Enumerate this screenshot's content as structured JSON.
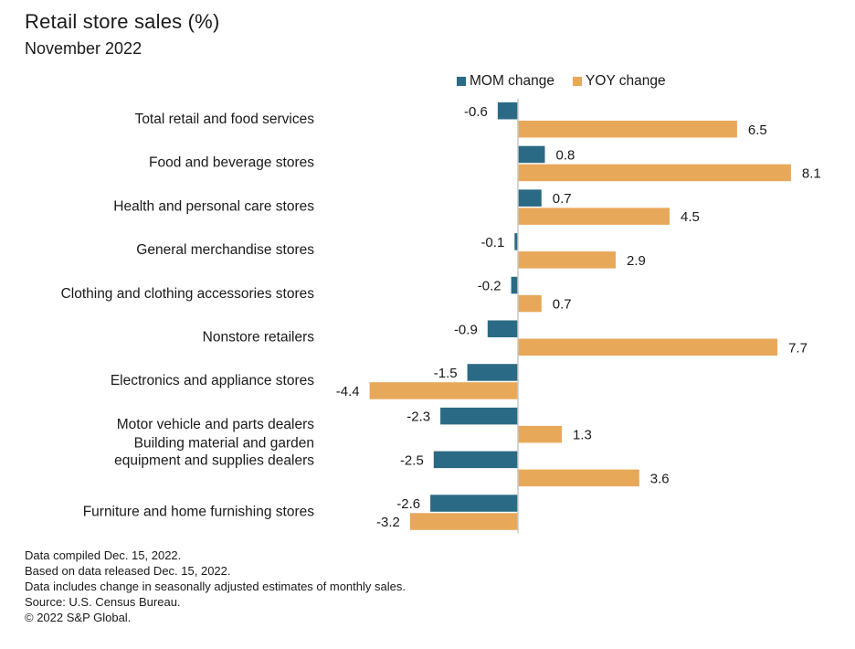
{
  "header": {
    "title": "Retail store sales (%)",
    "subtitle": "November 2022"
  },
  "colors": {
    "mom": "#2b6a84",
    "yoy": "#e8a85a",
    "axis": "#c8c8c8",
    "text": "#1a1a1a"
  },
  "legend": {
    "items": [
      {
        "label": "MOM change",
        "color": "#2b6a84"
      },
      {
        "label": "YOY change",
        "color": "#e8a85a"
      }
    ]
  },
  "chart_data": {
    "type": "bar",
    "orientation": "horizontal",
    "title": "Retail store sales (%)",
    "subtitle": "November 2022",
    "xlabel": "",
    "ylabel": "",
    "grid": false,
    "legend_position": "top",
    "xlim": [
      -4.4,
      8.1
    ],
    "categories": [
      "Total retail and food services",
      "Food and beverage stores",
      "Health and personal care stores",
      "General merchandise stores",
      "Clothing and clothing accessories stores",
      "Nonstore retailers",
      "Electronics and appliance stores",
      "Motor vehicle and parts dealers",
      "Building material and garden equipment and supplies dealers",
      "Furniture and home furnishing stores"
    ],
    "category_lines": [
      [
        "Total retail and food services"
      ],
      [
        "Food and beverage stores"
      ],
      [
        "Health and personal care stores"
      ],
      [
        "General merchandise stores"
      ],
      [
        "Clothing and clothing accessories stores"
      ],
      [
        "Nonstore retailers"
      ],
      [
        "Electronics and appliance stores"
      ],
      [
        "Motor vehicle and parts dealers"
      ],
      [
        "Building material and garden",
        "equipment and supplies dealers"
      ],
      [
        "Furniture and home furnishing stores"
      ]
    ],
    "series": [
      {
        "name": "MOM change",
        "values": [
          -0.6,
          0.8,
          0.7,
          -0.1,
          -0.2,
          -0.9,
          -1.5,
          -2.3,
          -2.5,
          -2.6
        ]
      },
      {
        "name": "YOY change",
        "values": [
          6.5,
          8.1,
          4.5,
          2.9,
          0.7,
          7.7,
          -4.4,
          1.3,
          3.6,
          -3.2
        ]
      }
    ]
  },
  "footer": {
    "notes": [
      "Data compiled Dec. 15, 2022.",
      "Based on data released Dec. 15, 2022.",
      "Data includes change in seasonally adjusted estimates of monthly sales.",
      "Source: U.S. Census Bureau.",
      "© 2022 S&P Global."
    ]
  }
}
